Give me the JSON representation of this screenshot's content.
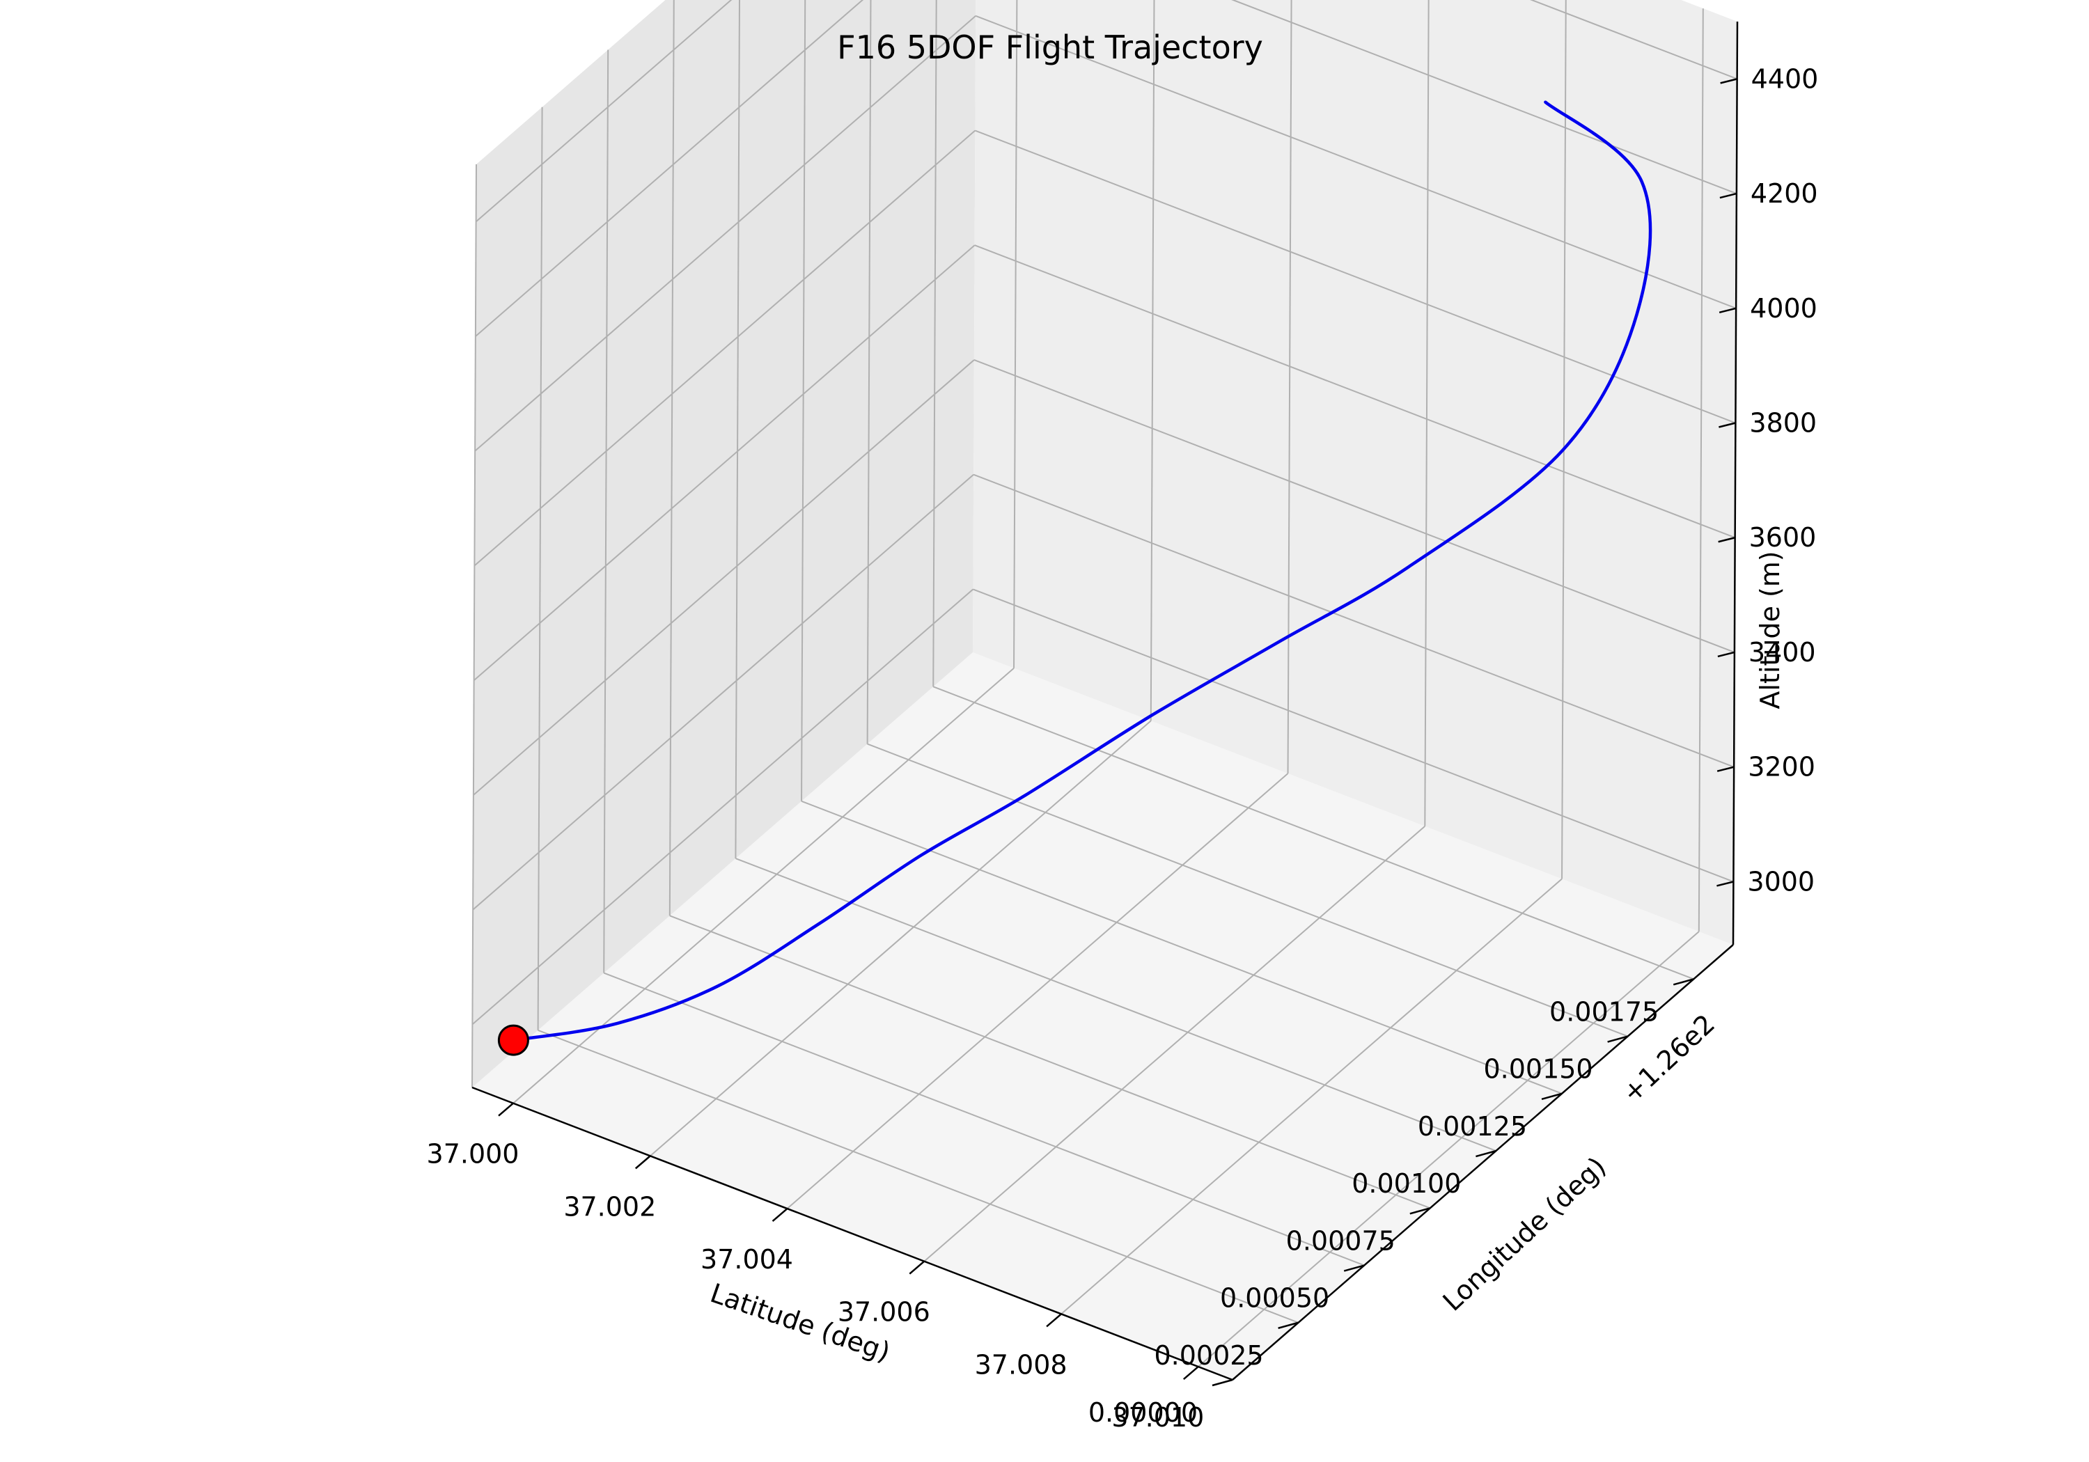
{
  "colors": {
    "trajectory": "#0000ee",
    "start_marker_fill": "#ff0000",
    "start_marker_edge": "#000000",
    "pane_light": "#f5f5f5",
    "pane_mid": "#eeeeee",
    "pane_dark": "#e6e6e6",
    "grid": "#b0b0b0"
  },
  "chart_data": {
    "type": "line",
    "projection": "3d",
    "title": "F16 5DOF Flight Trajectory",
    "xlabel": "Latitude (deg)",
    "ylabel": "Longitude (deg)",
    "zlabel": "Altitude (m)",
    "y_offset_text": "+1.26e2",
    "xlim": [
      36.9994,
      37.0105
    ],
    "ylim": [
      0.0,
      0.0019
    ],
    "zlim": [
      2890,
      4500
    ],
    "xticks": [
      "37.000",
      "37.002",
      "37.004",
      "37.006",
      "37.008",
      "37.010"
    ],
    "yticks": [
      "0.00000",
      "0.00025",
      "0.00050",
      "0.00075",
      "0.00100",
      "0.00125",
      "0.00150",
      "0.00175"
    ],
    "zticks": [
      "3000",
      "3200",
      "3400",
      "3600",
      "3800",
      "4000",
      "4200",
      "4400"
    ],
    "grid": true,
    "series": [
      {
        "type": "line",
        "x": [
          37.0,
          37.0011,
          37.0022,
          37.0033,
          37.0044,
          37.0055,
          37.0066,
          37.0077,
          37.0088,
          37.0099,
          37.0102,
          37.0095,
          37.0079
        ],
        "y": [
          0.0,
          0.0001,
          0.0002,
          0.0003,
          0.0004,
          0.0005,
          0.0007,
          0.0009,
          0.0011,
          0.0014,
          0.0016,
          0.0018,
          0.00185
        ],
        "z": [
          3000,
          3039,
          3115,
          3235,
          3365,
          3478,
          3590,
          3690,
          3790,
          3925,
          4095,
          4215,
          4260
        ]
      },
      {
        "type": "scatter",
        "marker": "start",
        "x": [
          37.0
        ],
        "y": [
          0.0
        ],
        "z": [
          3000
        ]
      }
    ]
  }
}
